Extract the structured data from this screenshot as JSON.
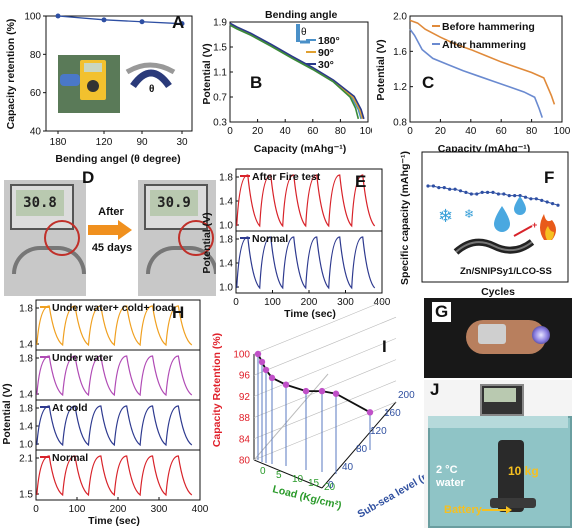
{
  "panels": {
    "A": {
      "label": "A",
      "xlabel": "Bending angel (θ degree)",
      "ylabel": "Capacity retention (%)",
      "inset_theta": "θ"
    },
    "B": {
      "label": "B",
      "legend_title": "Bending angle",
      "legend_theta": "θ",
      "xlabel": "Capacity (mAhg⁻¹)",
      "ylabel": "Potential (V)"
    },
    "C": {
      "label": "C",
      "xlabel": "Capacity (mAhg⁻¹)",
      "ylabel": "Potential (V)"
    },
    "D": {
      "label": "D",
      "arrow_top": "After",
      "arrow_bottom": "45 days",
      "display_left": "30.8",
      "display_right": "30.9"
    },
    "E": {
      "label": "E",
      "xlabel": "Time (sec)",
      "ylabel": "Potential (V)"
    },
    "F": {
      "label": "F",
      "ylabel": "Specific capacity (mAhg⁻¹)",
      "xlabel": "Cycles",
      "cell_label": "Zn/SNIPSy1/LCO-SS"
    },
    "G": {
      "label": "G"
    },
    "H": {
      "label": "H",
      "xlabel": "Time (sec)",
      "ylabel": "Potential (V)"
    },
    "I": {
      "label": "I",
      "zlabel": "Capacity Retention (%)",
      "xlabel": "Load (Kg/cm²)",
      "ylabel": "Sub-sea level (m)"
    },
    "J": {
      "label": "J",
      "water_label_1": "2 °C",
      "water_label_2": "water",
      "weight_label": "10 kg",
      "battery_label": "Battery"
    }
  },
  "colors": {
    "blue": "#2e4fa3",
    "red": "#d8232a",
    "orange": "#f0a020",
    "purple": "#b04bb5",
    "green": "#3a8a3a",
    "axis_blue": "#3050a0",
    "axis_green": "#2a9a2a",
    "panel_I_red": "#e0202a"
  },
  "chart_data": [
    {
      "id": "A",
      "type": "line",
      "x": [
        180,
        120,
        90,
        30
      ],
      "values": [
        100,
        98,
        97,
        96
      ],
      "xticks": [
        "180",
        "120",
        "90",
        "30"
      ],
      "ylim": [
        40,
        100
      ],
      "yticks": [
        "100",
        "80",
        "60",
        "40"
      ]
    },
    {
      "id": "B",
      "type": "line",
      "xlim": [
        0,
        100
      ],
      "ylim": [
        0.3,
        1.9
      ],
      "xticks": [
        "0",
        "20",
        "40",
        "60",
        "80",
        "100"
      ],
      "yticks": [
        "1.9",
        "1.5",
        "1.1",
        "0.7",
        "0.3"
      ],
      "series": [
        {
          "name": "180°",
          "color": "#4a90c8",
          "x": [
            0,
            5,
            15,
            30,
            45,
            60,
            75,
            88,
            93,
            95
          ],
          "y": [
            1.86,
            1.8,
            1.7,
            1.52,
            1.33,
            1.15,
            0.95,
            0.7,
            0.5,
            0.35
          ]
        },
        {
          "name": "90°",
          "color": "#e0a030",
          "x": [
            0,
            5,
            15,
            30,
            45,
            60,
            75,
            89,
            94,
            96
          ],
          "y": [
            1.87,
            1.81,
            1.71,
            1.53,
            1.34,
            1.16,
            0.96,
            0.7,
            0.5,
            0.35
          ]
        },
        {
          "name": "30°",
          "color": "#2a3a8a",
          "x": [
            0,
            5,
            15,
            30,
            45,
            60,
            75,
            90,
            95,
            97
          ],
          "y": [
            1.88,
            1.82,
            1.72,
            1.54,
            1.35,
            1.17,
            0.97,
            0.71,
            0.5,
            0.35
          ]
        },
        {
          "name": "",
          "color": "#3a8a3a",
          "x": [
            0,
            5,
            15,
            30,
            45,
            60,
            75,
            87,
            91,
            93
          ],
          "y": [
            1.85,
            1.79,
            1.69,
            1.51,
            1.32,
            1.14,
            0.94,
            0.7,
            0.52,
            0.35
          ]
        }
      ]
    },
    {
      "id": "C",
      "type": "line",
      "xlim": [
        0,
        100
      ],
      "ylim": [
        0.8,
        2.0
      ],
      "xticks": [
        "0",
        "20",
        "40",
        "60",
        "80",
        "100"
      ],
      "yticks": [
        "2.0",
        "1.6",
        "1.2",
        "0.8"
      ],
      "series": [
        {
          "name": "Before hammering",
          "color": "#e08a3a",
          "x": [
            0,
            5,
            10,
            20,
            30,
            40,
            50,
            60,
            70,
            80,
            88,
            93,
            95
          ],
          "y": [
            1.95,
            1.92,
            1.85,
            1.76,
            1.68,
            1.62,
            1.55,
            1.48,
            1.42,
            1.36,
            1.3,
            1.1,
            1.0
          ]
        },
        {
          "name": "After hammering",
          "color": "#6a8ad0",
          "x": [
            0,
            3,
            8,
            15,
            25,
            35,
            45,
            55,
            65,
            75,
            82,
            85,
            87
          ],
          "y": [
            1.85,
            1.78,
            1.62,
            1.52,
            1.45,
            1.38,
            1.32,
            1.26,
            1.2,
            1.14,
            1.08,
            0.95,
            0.85
          ]
        }
      ]
    },
    {
      "id": "E",
      "type": "line",
      "xlim": [
        0,
        400
      ],
      "xticks": [
        "0",
        "100",
        "200",
        "300",
        "400"
      ],
      "sub_yticks": [
        "1.8",
        "1.4",
        "1.0"
      ],
      "cycle_period": 63,
      "series": [
        {
          "name": "After Fire test",
          "color": "#d8232a"
        },
        {
          "name": "Normal",
          "color": "#2e3a8f"
        }
      ]
    },
    {
      "id": "F",
      "type": "line",
      "color": "#2e4fa3",
      "values": [
        78,
        78,
        77,
        77,
        76,
        76,
        75,
        74,
        73,
        73,
        74,
        74,
        74,
        73,
        73,
        72,
        72,
        72,
        71,
        70,
        70,
        69,
        68,
        67,
        66
      ]
    },
    {
      "id": "H",
      "type": "line",
      "xlim": [
        0,
        400
      ],
      "xticks": [
        "0",
        "100",
        "200",
        "300",
        "400"
      ],
      "sub_yticks": [
        [
          "1.8",
          "1.4"
        ],
        [
          "1.8",
          "1.4"
        ],
        [
          "1.8",
          "1.4",
          "1.0"
        ],
        [
          "2.1",
          "1.5"
        ]
      ],
      "series": [
        {
          "name": "Under water+ cold+ load",
          "color": "#f0a020"
        },
        {
          "name": "Under water",
          "color": "#b04bb5"
        },
        {
          "name": "At cold",
          "color": "#2e3a8f"
        },
        {
          "name": "Normal",
          "color": "#d8232a"
        }
      ]
    },
    {
      "id": "I",
      "type": "scatter",
      "zticks": [
        "100",
        "96",
        "92",
        "88",
        "84",
        "80"
      ],
      "xticks": [
        "0",
        "5",
        "10",
        "15",
        "20"
      ],
      "yticks": [
        "0",
        "40",
        "80",
        "120",
        "160",
        "200"
      ],
      "series": [
        {
          "name": "",
          "z": [
            100,
            98.5,
            97,
            95.5,
            94.2,
            93,
            93,
            92.5,
            89
          ]
        }
      ]
    }
  ]
}
